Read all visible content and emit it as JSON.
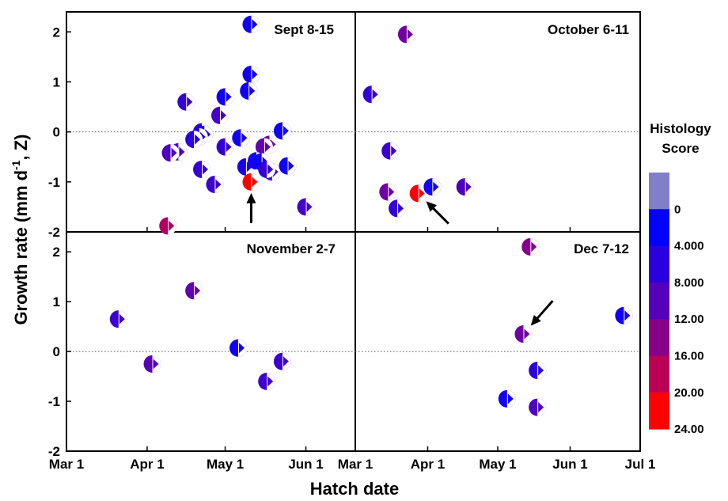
{
  "chart_data": {
    "type": "scatter",
    "xlabel": "Hatch date",
    "ylabel_parts": {
      "main": "Growth rate  (mm d",
      "sup": "-1",
      "tail": ", Z)"
    },
    "ylim": [
      -2,
      2.4
    ],
    "y_ticks": [
      -2,
      -1,
      0,
      1,
      2
    ],
    "x_axis_left": {
      "range": [
        "Mar 1",
        "Jun 20"
      ],
      "ticks": [
        "Mar 1",
        "Apr 1",
        "May 1",
        "Jun 1"
      ]
    },
    "x_axis_right": {
      "range": [
        "Mar 1",
        "Jul 1"
      ],
      "ticks": [
        "Mar 1",
        "Apr 1",
        "May 1",
        "Jun 1",
        "Jul 1"
      ]
    },
    "grid": false,
    "zero_reference_line": "dotted",
    "legend": {
      "title_lines": [
        "Histology",
        "Score"
      ],
      "position": "right",
      "labels": [
        "0",
        "4.000",
        "8.000",
        "12.00",
        "16.00",
        "20.00",
        "24.00"
      ],
      "bands": [
        {
          "color": "#8080C8"
        },
        {
          "color": "#0000FF"
        },
        {
          "color": "#2A00DE"
        },
        {
          "color": "#5500BB"
        },
        {
          "color": "#880088"
        },
        {
          "color": "#BB0055"
        },
        {
          "color": "#FF0000"
        }
      ]
    },
    "panels": [
      {
        "title": "Sept 8-15",
        "position": "top-left",
        "points": [
          {
            "x": "May 11",
            "y": 2.15,
            "score": 2
          },
          {
            "x": "May 11",
            "y": 1.15,
            "score": 2
          },
          {
            "x": "May 10",
            "y": 0.82,
            "score": 2
          },
          {
            "x": "May 1",
            "y": 0.7,
            "score": 2
          },
          {
            "x": "Apr 16",
            "y": 0.6,
            "score": 6
          },
          {
            "x": "Apr 29",
            "y": 0.33,
            "score": 8
          },
          {
            "x": "Apr 22",
            "y": 0.0,
            "score": 5
          },
          {
            "x": "Apr 23",
            "y": -0.05,
            "score": 3
          },
          {
            "x": "Apr 21",
            "y": -0.1,
            "score": 2
          },
          {
            "x": "Apr 19",
            "y": -0.15,
            "score": 5
          },
          {
            "x": "Apr 13",
            "y": -0.4,
            "score": 8
          },
          {
            "x": "Apr 10",
            "y": -0.42,
            "score": 9
          },
          {
            "x": "May 1",
            "y": -0.3,
            "score": 6
          },
          {
            "x": "May 7",
            "y": -0.12,
            "score": 2
          },
          {
            "x": "May 23",
            "y": 0.02,
            "score": 2
          },
          {
            "x": "May 18",
            "y": -0.25,
            "score": 13
          },
          {
            "x": "May 16",
            "y": -0.3,
            "score": 11
          },
          {
            "x": "May 9",
            "y": -0.7,
            "score": 3
          },
          {
            "x": "May 13",
            "y": -0.58,
            "score": 2
          },
          {
            "x": "May 15",
            "y": -0.6,
            "score": 2
          },
          {
            "x": "May 19",
            "y": -0.8,
            "score": 7
          },
          {
            "x": "May 17",
            "y": -0.75,
            "score": 6
          },
          {
            "x": "May 25",
            "y": -0.68,
            "score": 2
          },
          {
            "x": "Apr 22",
            "y": -0.75,
            "score": 6
          },
          {
            "x": "Apr 27",
            "y": -1.05,
            "score": 7
          },
          {
            "x": "May 11",
            "y": -1.0,
            "score": 24
          },
          {
            "x": "Jun 1",
            "y": -1.5,
            "score": 8
          },
          {
            "x": "Apr 9",
            "y": -1.88,
            "score": 18
          }
        ],
        "arrows": [
          {
            "x": "May 11",
            "y": -1.0,
            "dir": "up"
          }
        ]
      },
      {
        "title": "October 6-11",
        "position": "top-right",
        "points": [
          {
            "x": "Mar 23",
            "y": 1.95,
            "score": 12
          },
          {
            "x": "Mar 8",
            "y": 0.75,
            "score": 6
          },
          {
            "x": "Mar 16",
            "y": -0.38,
            "score": 7
          },
          {
            "x": "Mar 15",
            "y": -1.2,
            "score": 12
          },
          {
            "x": "Mar 19",
            "y": -1.53,
            "score": 6
          },
          {
            "x": "Mar 28",
            "y": -1.23,
            "score": 24
          },
          {
            "x": "Apr 3",
            "y": -1.1,
            "score": 2
          },
          {
            "x": "Apr 17",
            "y": -1.1,
            "score": 9
          }
        ],
        "arrows": [
          {
            "x": "Mar 28",
            "y": -1.23,
            "dir": "up-left"
          }
        ]
      },
      {
        "title": "November 2-7",
        "position": "bottom-left",
        "points": [
          {
            "x": "Mar 21",
            "y": 0.65,
            "score": 7
          },
          {
            "x": "Apr 19",
            "y": 1.22,
            "score": 11
          },
          {
            "x": "Apr 3",
            "y": -0.25,
            "score": 10
          },
          {
            "x": "May 6",
            "y": 0.07,
            "score": 2
          },
          {
            "x": "May 23",
            "y": -0.2,
            "score": 7
          },
          {
            "x": "May 17",
            "y": -0.6,
            "score": 7
          }
        ],
        "arrows": []
      },
      {
        "title": "Dec 7-12",
        "position": "bottom-right",
        "points": [
          {
            "x": "May 15",
            "y": 2.1,
            "score": 14
          },
          {
            "x": "May 12",
            "y": 0.35,
            "score": 12
          },
          {
            "x": "Jun 24",
            "y": 0.72,
            "score": 2
          },
          {
            "x": "May 18",
            "y": -0.38,
            "score": 5
          },
          {
            "x": "May 5",
            "y": -0.95,
            "score": 2
          },
          {
            "x": "May 18",
            "y": -1.12,
            "score": 9
          }
        ],
        "arrows": [
          {
            "x": "May 12",
            "y": 0.35,
            "dir": "down-left"
          }
        ]
      }
    ]
  }
}
